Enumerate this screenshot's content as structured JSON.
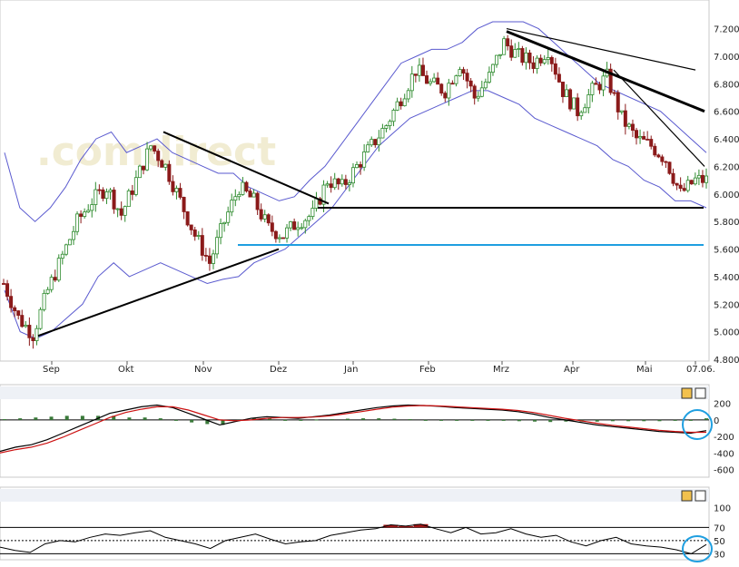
{
  "watermark": ".comdirect",
  "chart_data": [
    {
      "type": "candlestick",
      "title": "",
      "x_ticks": [
        "Sep",
        "Okt",
        "Nov",
        "Dez",
        "Jan",
        "Feb",
        "Mrz",
        "Apr",
        "Mai",
        "07.06."
      ],
      "y_ticks": [
        "7.200",
        "7.000",
        "6.800",
        "6.600",
        "6.400",
        "6.200",
        "6.000",
        "5.800",
        "5.600",
        "5.400",
        "5.200",
        "5.000",
        "4.800"
      ],
      "ylim": [
        4.8,
        7.25
      ],
      "grid": false,
      "colors": {
        "up": "#2e8b2e",
        "down": "#8b1a1a",
        "band": "#5a5acf",
        "trend": "#000000",
        "support": "#1f9fe0"
      },
      "series_name": "",
      "weekly_close": [
        5.35,
        5.1,
        4.98,
        5.3,
        5.55,
        5.8,
        5.95,
        6.05,
        5.85,
        6.1,
        6.35,
        6.2,
        5.95,
        5.7,
        5.5,
        5.8,
        6.05,
        5.95,
        5.75,
        5.7,
        5.8,
        5.85,
        6.1,
        6.05,
        6.2,
        6.35,
        6.5,
        6.7,
        6.9,
        6.8,
        6.75,
        6.95,
        6.7,
        6.85,
        7.1,
        7.0,
        6.95,
        7.05,
        6.75,
        6.6,
        6.75,
        6.85,
        6.55,
        6.4,
        6.35,
        6.25,
        6.0,
        6.1
      ],
      "bollinger_upper": [
        6.3,
        5.9,
        5.8,
        5.9,
        6.05,
        6.25,
        6.4,
        6.45,
        6.3,
        6.35,
        6.4,
        6.3,
        6.25,
        6.2,
        6.15,
        6.15,
        6.05,
        6.0,
        5.95,
        5.98,
        6.1,
        6.2,
        6.35,
        6.5,
        6.65,
        6.8,
        6.95,
        7.0,
        7.05,
        7.05,
        7.1,
        7.2,
        7.25,
        7.25,
        7.25,
        7.2,
        7.1,
        7.0,
        6.9,
        6.8,
        6.75,
        6.7,
        6.65,
        6.6,
        6.5,
        6.4,
        6.3
      ],
      "bollinger_lower": [
        5.3,
        5.0,
        4.95,
        5.0,
        5.1,
        5.2,
        5.4,
        5.5,
        5.4,
        5.45,
        5.5,
        5.45,
        5.4,
        5.35,
        5.38,
        5.4,
        5.5,
        5.55,
        5.6,
        5.7,
        5.8,
        5.9,
        6.05,
        6.2,
        6.35,
        6.45,
        6.55,
        6.6,
        6.65,
        6.7,
        6.75,
        6.75,
        6.7,
        6.65,
        6.55,
        6.5,
        6.45,
        6.4,
        6.35,
        6.25,
        6.2,
        6.1,
        6.05,
        5.95,
        5.95,
        5.9
      ],
      "trendlines": [
        {
          "from": [
            "Sep",
            4.97
          ],
          "to": [
            "Dez",
            5.6
          ]
        },
        {
          "from": [
            "Okt",
            6.45
          ],
          "to": [
            "Dez",
            5.93
          ]
        },
        {
          "from": [
            "Mrz",
            7.2
          ],
          "to": [
            "07.06.",
            6.9
          ]
        },
        {
          "from": [
            "Mrz",
            7.18
          ],
          "to": [
            "07.06.",
            6.6
          ]
        },
        {
          "from": [
            "Apr",
            6.9
          ],
          "to": [
            "07.06.",
            6.2
          ]
        }
      ],
      "horizontal_lines": [
        {
          "value": 5.9,
          "color": "#000000"
        },
        {
          "value": 5.63,
          "color": "#1f9fe0"
        }
      ]
    },
    {
      "type": "line",
      "title": "",
      "y_ticks": [
        "200",
        "0",
        "-200",
        "-400",
        "-600"
      ],
      "ylim": [
        -650,
        230
      ],
      "series": [
        {
          "values": [
            -380,
            -330,
            -300,
            -240,
            -160,
            -80,
            0,
            80,
            120,
            160,
            180,
            150,
            80,
            10,
            -60,
            -20,
            20,
            40,
            30,
            20,
            40,
            60,
            90,
            120,
            150,
            170,
            180,
            175,
            165,
            150,
            140,
            130,
            120,
            100,
            70,
            30,
            0,
            -30,
            -60,
            -80,
            -100,
            -120,
            -140,
            -150,
            -160,
            -130
          ]
        },
        {
          "values": [
            -400,
            -360,
            -330,
            -280,
            -210,
            -130,
            -50,
            30,
            90,
            130,
            160,
            160,
            120,
            60,
            0,
            -10,
            0,
            20,
            30,
            30,
            35,
            50,
            75,
            100,
            130,
            155,
            170,
            175,
            170,
            160,
            150,
            140,
            130,
            115,
            90,
            55,
            20,
            -10,
            -40,
            -65,
            -85,
            -105,
            -125,
            -140,
            -150,
            -150
          ]
        }
      ],
      "histogram": [
        10,
        20,
        30,
        40,
        50,
        50,
        50,
        50,
        30,
        30,
        20,
        -10,
        -30,
        -50,
        -60,
        -10,
        20,
        20,
        0,
        -10,
        5,
        10,
        15,
        20,
        20,
        15,
        10,
        0,
        -5,
        -10,
        -10,
        -10,
        -10,
        -15,
        -20,
        -25,
        -20,
        -20,
        -20,
        -15,
        -15,
        -15,
        -15,
        -10,
        -10,
        20
      ],
      "zero_line": 0
    },
    {
      "type": "line",
      "title": "",
      "y_ticks": [
        "100",
        "70",
        "50",
        "30"
      ],
      "ylim": [
        25,
        105
      ],
      "reference_lines": [
        70,
        50,
        30
      ],
      "series": [
        {
          "values": [
            40,
            35,
            32,
            45,
            50,
            48,
            55,
            60,
            58,
            62,
            65,
            55,
            50,
            45,
            38,
            50,
            55,
            60,
            52,
            45,
            48,
            50,
            58,
            62,
            66,
            68,
            74,
            72,
            75,
            68,
            62,
            70,
            60,
            62,
            68,
            60,
            55,
            58,
            48,
            42,
            50,
            55,
            45,
            42,
            40,
            36,
            30,
            44
          ]
        }
      ]
    }
  ]
}
